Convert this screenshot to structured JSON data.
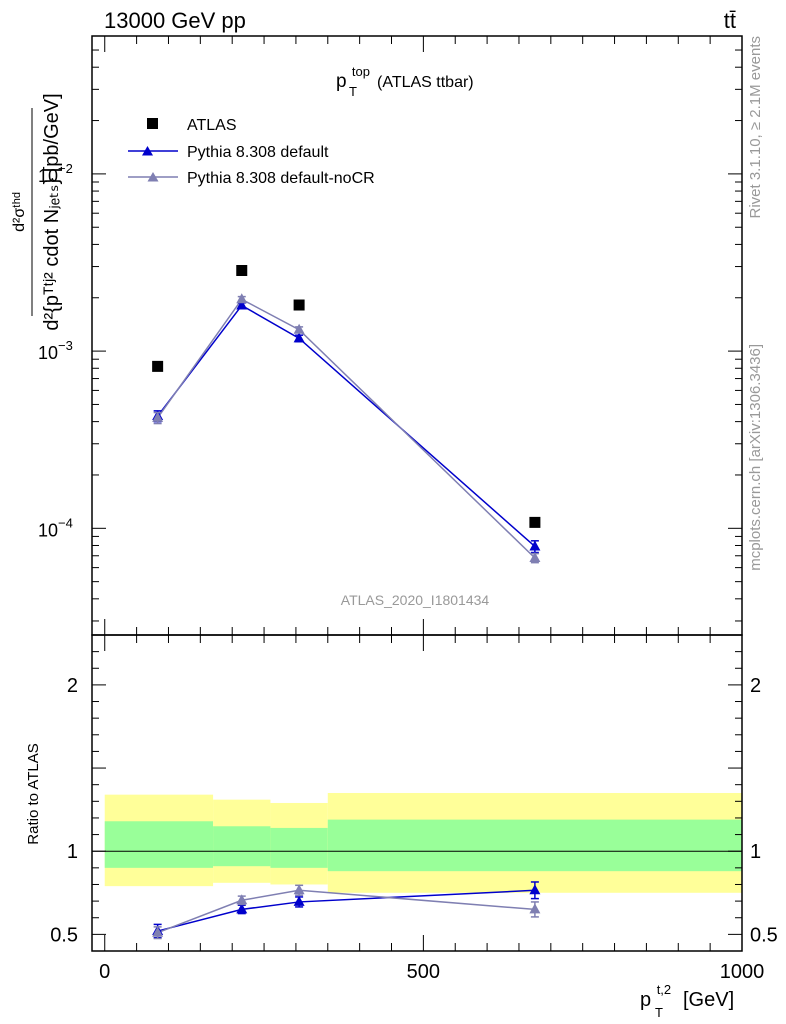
{
  "header": {
    "left": "13000 GeV pp",
    "right": "tt̄"
  },
  "side_labels": {
    "rivet": "Rivet 3.1.10, ≥ 2.1M events",
    "mcplots": "mcplots.cern.ch [arXiv:1306.3436]"
  },
  "colors": {
    "data": "#000000",
    "pythia_default": "#0000cc",
    "pythia_nocr": "#7f7fb2",
    "band_outer": "#ffff99",
    "band_inner": "#99ff99",
    "frame": "#000000",
    "watermark": "#999999"
  },
  "chart_data": [
    {
      "type": "scatter",
      "title_main": "p",
      "title_sup": "top",
      "title_sub": "T",
      "title_rest": "(ATLAS ttbar)",
      "watermark": "ATLAS_2020_I1801434",
      "ylabel_top": "d²σᵗʰᵈ",
      "ylabel_bottom": "d²{pᵀᵗʲ² cdot Nⱼₑₜₛ} [pb/GeV]",
      "yscale": "log",
      "ylim": [
        2.5e-05,
        0.06
      ],
      "xlim": [
        -20,
        1000
      ],
      "yticks": [
        {
          "value": 0.0001,
          "base": "10",
          "exp": "−4"
        },
        {
          "value": 0.001,
          "base": "10",
          "exp": "−3"
        },
        {
          "value": 0.01,
          "base": "10",
          "exp": "−2"
        }
      ],
      "legend_position": "top-left",
      "series": [
        {
          "name": "ATLAS",
          "marker": "square",
          "x": [
            83,
            215,
            305,
            675
          ],
          "y": [
            0.00082,
            0.00285,
            0.00182,
            0.000108
          ]
        },
        {
          "name": "Pythia 8.308 default",
          "marker": "triangle",
          "x": [
            83,
            215,
            305,
            675
          ],
          "y": [
            0.00043,
            0.00181,
            0.00118,
            7.9e-05
          ],
          "yerr": [
            3e-05,
            6e-05,
            5e-05,
            6e-06
          ]
        },
        {
          "name": "Pythia 8.308 default-noCR",
          "marker": "triangle",
          "x": [
            83,
            215,
            305,
            675
          ],
          "y": [
            0.00042,
            0.00196,
            0.00132,
            6.8e-05
          ],
          "yerr": [
            3e-05,
            7e-05,
            5e-05,
            4e-06
          ]
        }
      ]
    },
    {
      "type": "line",
      "ylabel": "Ratio to ATLAS",
      "xlabel_main": "p",
      "xlabel_sup": "t,2",
      "xlabel_sub": "T",
      "xlabel_rest": "[GeV]",
      "ylim": [
        0.4,
        2.3
      ],
      "xlim": [
        -20,
        1000
      ],
      "yticks": [
        0.5,
        1,
        2
      ],
      "xticks": [
        0,
        500,
        1000
      ],
      "bands": [
        {
          "x0": 0,
          "x1": 170,
          "inner": [
            0.9,
            1.18
          ],
          "outer": [
            0.79,
            1.34
          ]
        },
        {
          "x0": 170,
          "x1": 260,
          "inner": [
            0.91,
            1.15
          ],
          "outer": [
            0.81,
            1.31
          ]
        },
        {
          "x0": 260,
          "x1": 350,
          "inner": [
            0.9,
            1.14
          ],
          "outer": [
            0.8,
            1.29
          ]
        },
        {
          "x0": 350,
          "x1": 1000,
          "inner": [
            0.88,
            1.19
          ],
          "outer": [
            0.75,
            1.35
          ]
        }
      ],
      "series": [
        {
          "name": "Pythia 8.308 default",
          "x": [
            83,
            215,
            305,
            675
          ],
          "y": [
            0.52,
            0.65,
            0.695,
            0.765
          ],
          "yerr": [
            0.04,
            0.025,
            0.03,
            0.05
          ]
        },
        {
          "name": "Pythia 8.308 default-noCR",
          "x": [
            83,
            215,
            305,
            675
          ],
          "y": [
            0.51,
            0.705,
            0.765,
            0.65
          ],
          "yerr": [
            0.035,
            0.025,
            0.03,
            0.045
          ]
        }
      ]
    }
  ]
}
